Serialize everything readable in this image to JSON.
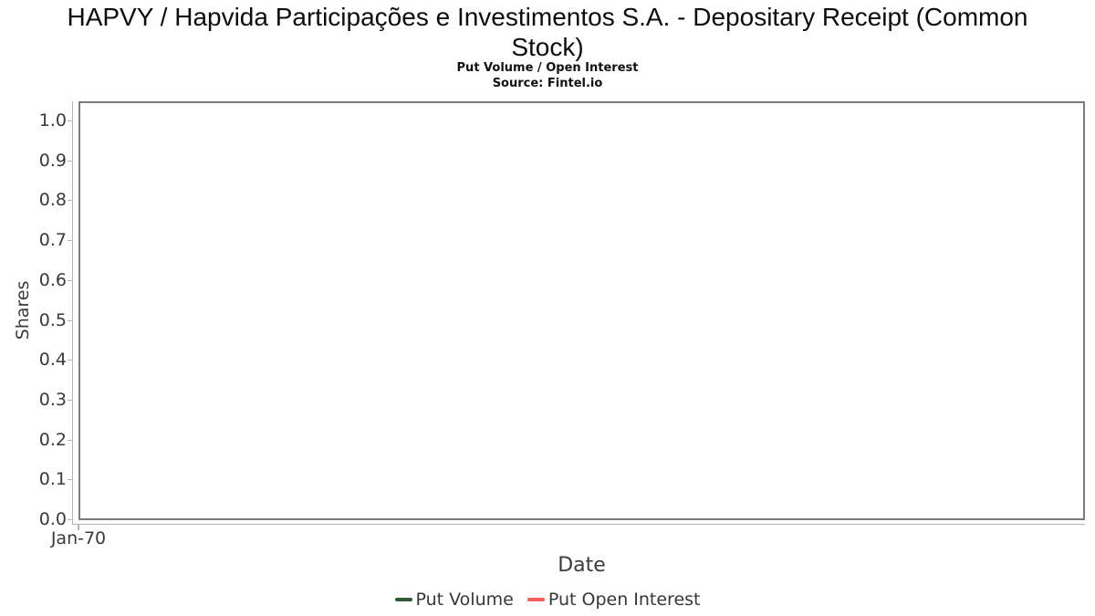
{
  "figure": {
    "title_line1": "HAPVY / Hapvida Participações e Investimentos S.A. - Depositary Receipt (Common",
    "title_line2": "Stock)",
    "subtitle": "Put Volume / Open Interest",
    "source": "Source: Fintel.io"
  },
  "chart_data": {
    "type": "line",
    "title": "HAPVY / Hapvida Participações e Investimentos S.A. - Depositary Receipt (Common Stock)",
    "subtitle": "Put Volume / Open Interest",
    "source": "Source: Fintel.io",
    "xlabel": "Date",
    "ylabel": "Shares",
    "x_tick_labels": [
      "Jan-70"
    ],
    "y_ticks": [
      0.0,
      0.1,
      0.2,
      0.3,
      0.4,
      0.5,
      0.6,
      0.7,
      0.8,
      0.9,
      1.0
    ],
    "y_tick_labels": [
      "0.0",
      "0.1",
      "0.2",
      "0.3",
      "0.4",
      "0.5",
      "0.6",
      "0.7",
      "0.8",
      "0.9",
      "1.0"
    ],
    "ylim": [
      0,
      1.05
    ],
    "grid": true,
    "legend_position": "bottom",
    "series": [
      {
        "name": "Put Volume",
        "color": "#2d5c3b",
        "x": [],
        "values": []
      },
      {
        "name": "Put Open Interest",
        "color": "#f95d5d",
        "x": [],
        "values": []
      }
    ]
  },
  "colors": {
    "plot_border": "#7c7c7c",
    "axis_line": "#b5b5b5",
    "gridline": "#e6e6e6",
    "tick_label": "#3a3a3a",
    "title": "#0d0d0d",
    "background": "#ffffff"
  }
}
